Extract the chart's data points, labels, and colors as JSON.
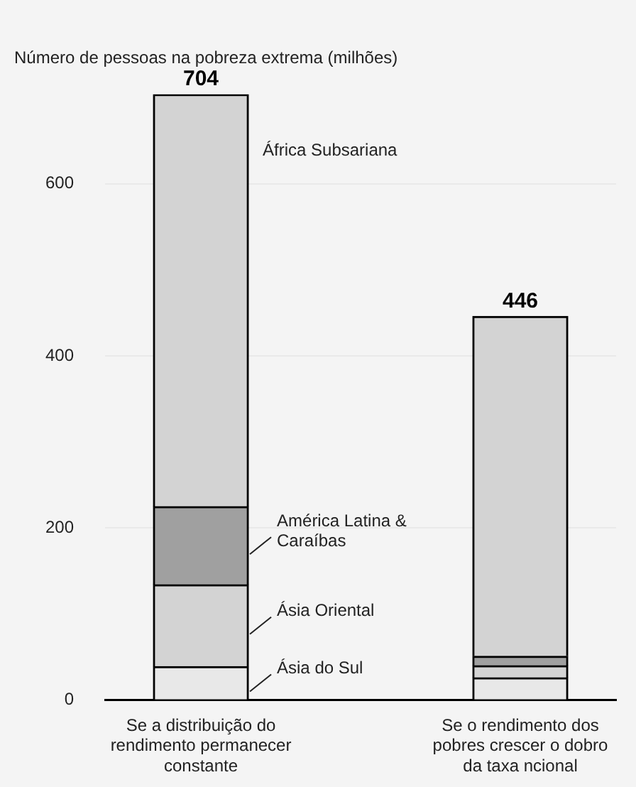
{
  "chart_data": {
    "type": "bar",
    "title": "Número de pessoas na pobreza extrema (milhões)",
    "categories": [
      "Se a distribuição do rendimento permanecer constante",
      "Se o rendimento dos pobres crescer o dobro da taxa ncional"
    ],
    "stacked": true,
    "series": [
      {
        "name": "Ásia do Sul",
        "color": "#e8e8e8",
        "values": [
          39,
          26
        ]
      },
      {
        "name": "Ásia Oriental",
        "color": "#d3d3d3",
        "values": [
          95,
          14
        ]
      },
      {
        "name": "América Latina & Caraíbas",
        "color": "#a0a0a0",
        "values": [
          91,
          11
        ]
      },
      {
        "name": "África Subsariana",
        "color": "#d3d3d3",
        "values": [
          479,
          395
        ]
      }
    ],
    "totals": [
      "704",
      "446"
    ],
    "ylim": [
      0,
      704
    ],
    "yticks": [
      0,
      200,
      400,
      600
    ],
    "grid": "y",
    "legend": false
  }
}
